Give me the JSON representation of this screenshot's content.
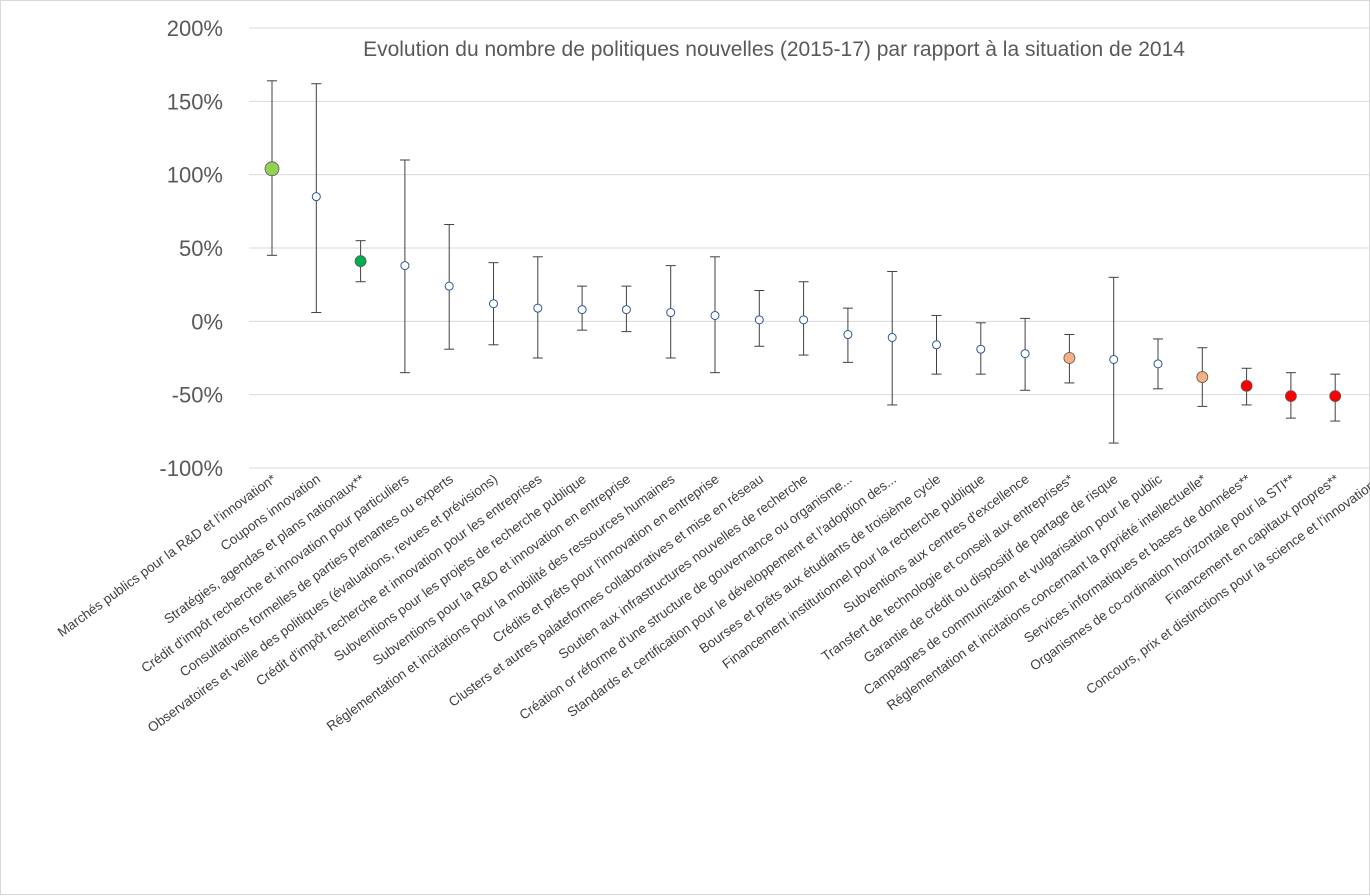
{
  "chart_data": {
    "type": "scatter",
    "title": "Evolution du nombre de politiques nouvelles (2015-17) par rapport à la situation de 2014",
    "xlabel": "",
    "ylabel": "",
    "ylim": [
      -100,
      200
    ],
    "y_ticks": [
      {
        "value": 200,
        "label": "200%"
      },
      {
        "value": 150,
        "label": "150%"
      },
      {
        "value": 100,
        "label": "100%"
      },
      {
        "value": 50,
        "label": "50%"
      },
      {
        "value": 0,
        "label": "0%"
      },
      {
        "value": -50,
        "label": "-50%"
      },
      {
        "value": -100,
        "label": "-100%"
      }
    ],
    "grid": true,
    "legend": "none",
    "colors": {
      "light_green": "#92d050",
      "green": "#00b050",
      "open": "#ffffff",
      "orange": "#f4b183",
      "red": "#ff0000",
      "marker_edge": "#2f5597"
    },
    "categories": [
      "Marchés publics pour la R&D et l'innovation*",
      "Coupons innovation",
      "Stratégies, agendas et plans nationaux**",
      "Crédit d'impôt recherche et innovation pour particuliers",
      "Consultations formelles de parties prenantes ou experts",
      "Observatoires et veille des politiques (évaluations, revues et prévisions)",
      "Crédit d'impôt recherche et innovation pour les entreprises",
      "Subventions pour les projets de recherche publique",
      "Subventions pour la R&D et innovation en entreprise",
      "Réglementation et incitations pour la mobilité des ressources humaines",
      "Crédits et prêts pour l'innovation en entreprise",
      "Clusters et autres palateformes collaboratives et mise en réseau",
      "Soutien aux infrastructures nouvelles de recherche",
      "Création or réforme d'une structure de gouvernance ou organisme...",
      "Standards et certification pour le développement et l'adoption des...",
      "Bourses et prêts aux étudiants de troisième cycle",
      "Financement institutionnel pour la recherche publique",
      "Subventions aux centres d'excellence",
      "Transfert de technologie et conseil aux entreprises*",
      "Garantie de crédit ou dispositif de partage de risque",
      "Campagnes de communication et vulgarisation pour le public",
      "Réglementation et incitations concernant la prpriété intellectuelle*",
      "Services informatiques et bases de données**",
      "Organismes de co-ordination horizontale pour la STI**",
      "Financement en capitaux propres**",
      "Concours, prix et distinctions pour la science et l'innovation**"
    ],
    "series": [
      {
        "values": [
          104,
          85,
          41,
          38,
          24,
          12,
          9,
          8,
          8,
          6,
          4,
          1,
          1,
          -9,
          -11,
          -16,
          -19,
          -22,
          -25,
          -26,
          -29,
          -38,
          -44,
          -51,
          -51,
          -51
        ],
        "error_high": [
          164,
          162,
          55,
          110,
          66,
          40,
          44,
          24,
          24,
          38,
          44,
          21,
          27,
          9,
          34,
          4,
          -1,
          2,
          -9,
          30,
          -12,
          -18,
          -32,
          -35,
          -36,
          -35
        ],
        "error_low": [
          45,
          6,
          27,
          -35,
          -19,
          -16,
          -25,
          -6,
          -7,
          -25,
          -35,
          -17,
          -23,
          -28,
          -57,
          -36,
          -36,
          -47,
          -42,
          -83,
          -46,
          -58,
          -57,
          -66,
          -68,
          -70
        ],
        "marker_colors": [
          "#92d050",
          "#ffffff",
          "#00b050",
          "#ffffff",
          "#ffffff",
          "#ffffff",
          "#ffffff",
          "#ffffff",
          "#ffffff",
          "#ffffff",
          "#ffffff",
          "#ffffff",
          "#ffffff",
          "#ffffff",
          "#ffffff",
          "#ffffff",
          "#ffffff",
          "#ffffff",
          "#f4b183",
          "#ffffff",
          "#ffffff",
          "#f4b183",
          "#ff0000",
          "#ff0000",
          "#ff0000",
          "#ff0000"
        ]
      }
    ]
  }
}
